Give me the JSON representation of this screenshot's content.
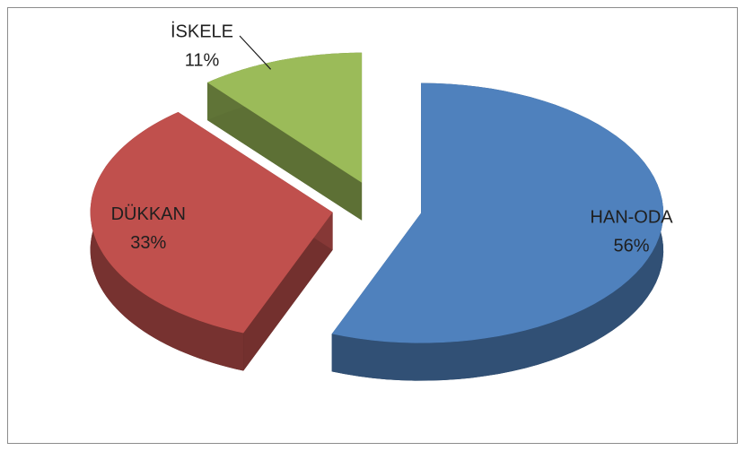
{
  "chart_data": {
    "type": "pie",
    "categories": [
      "HAN-ODA",
      "DÜKKAN",
      "İSKELE"
    ],
    "values": [
      56,
      33,
      11
    ],
    "value_labels": [
      "56%",
      "33%",
      "11%"
    ],
    "colors": [
      "#4f81bd",
      "#c0504d",
      "#9bbb59"
    ],
    "exploded": true,
    "three_d": true
  }
}
